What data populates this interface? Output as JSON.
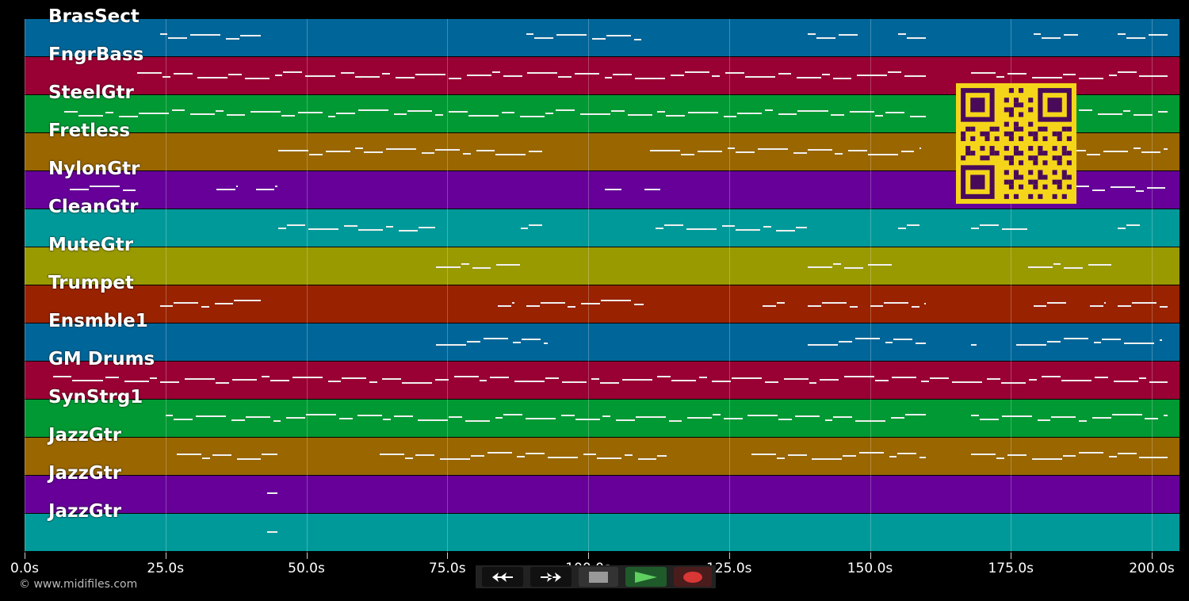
{
  "tracks": [
    {
      "name": "BrasSect",
      "color": "#006699"
    },
    {
      "name": "FngrBass",
      "color": "#990033"
    },
    {
      "name": "SteelGtr",
      "color": "#009933"
    },
    {
      "name": "Fretless",
      "color": "#996600"
    },
    {
      "name": "NylonGtr",
      "color": "#660099"
    },
    {
      "name": "CleanGtr",
      "color": "#009999"
    },
    {
      "name": "MuteGtr",
      "color": "#999900"
    },
    {
      "name": "Trumpet",
      "color": "#992200"
    },
    {
      "name": "Ensmble1",
      "color": "#006699"
    },
    {
      "name": "GM Drums",
      "color": "#990033"
    },
    {
      "name": "SynStrg1",
      "color": "#009933"
    },
    {
      "name": "JazzGtr",
      "color": "#996600"
    },
    {
      "name": "JazzGtr",
      "color": "#660099"
    },
    {
      "name": "JazzGtr",
      "color": "#009999"
    }
  ],
  "time_axis": {
    "max_seconds": 205,
    "ticks": [
      "0.0s",
      "25.0s",
      "50.0s",
      "75.0s",
      "100.0s",
      "125.0s",
      "150.0s",
      "175.0s",
      "200.0s"
    ]
  },
  "footer": {
    "copyright": "© www.midifiles.com"
  },
  "controls": {
    "rewind": "rewind-icon",
    "forward": "fast-forward-icon",
    "stop": "stop-icon",
    "play": "play-icon",
    "record": "record-icon"
  }
}
